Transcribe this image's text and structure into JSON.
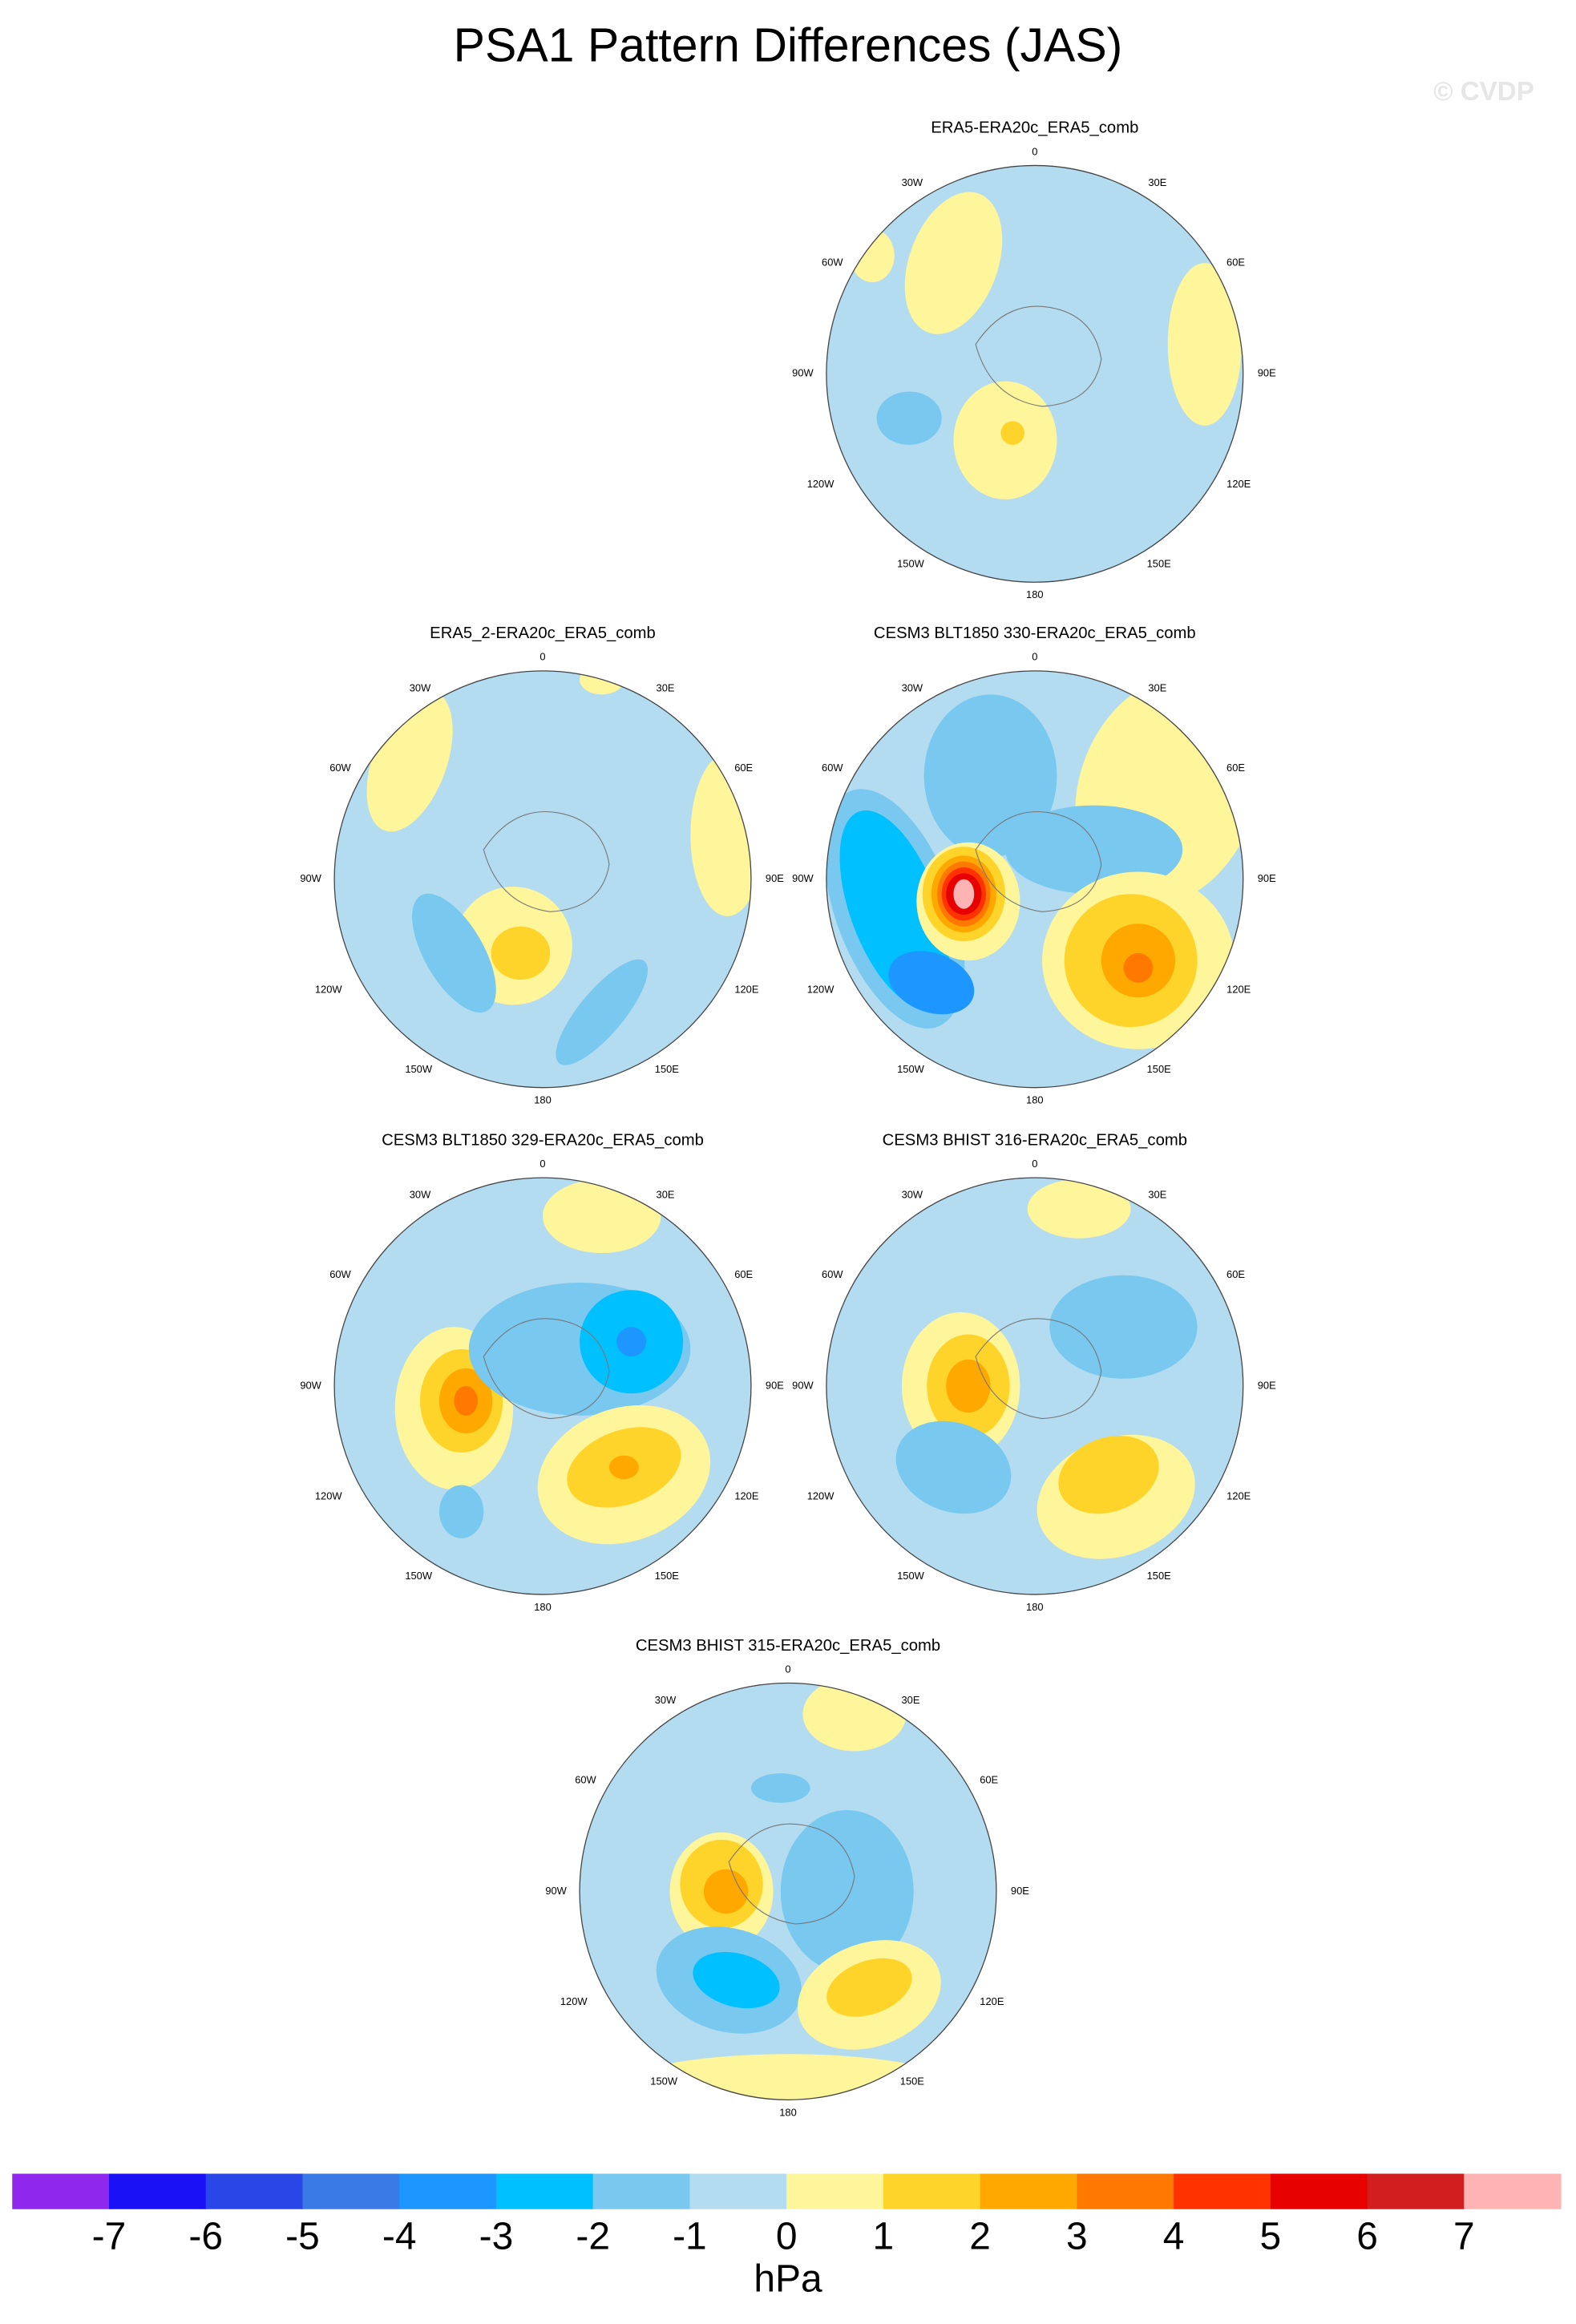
{
  "title": "PSA1 Pattern Differences (JAS)",
  "watermark": "© CVDP",
  "panels": [
    {
      "title": "ERA5-ERA20c_ERA5_comb",
      "lon_labels": [
        "0",
        "30E",
        "60E",
        "90E",
        "120E",
        "150E",
        "180",
        "150W",
        "120W",
        "90W",
        "60W",
        "30W"
      ]
    },
    {
      "title": "ERA5_2-ERA20c_ERA5_comb",
      "lon_labels": [
        "0",
        "30E",
        "60E",
        "90E",
        "120E",
        "150E",
        "180",
        "150W",
        "120W",
        "90W",
        "60W",
        "30W"
      ]
    },
    {
      "title": "CESM3 BLT1850 330-ERA20c_ERA5_comb",
      "lon_labels": [
        "0",
        "30E",
        "60E",
        "90E",
        "120E",
        "150E",
        "180",
        "150W",
        "120W",
        "90W",
        "60W",
        "30W"
      ]
    },
    {
      "title": "CESM3 BLT1850 329-ERA20c_ERA5_comb",
      "lon_labels": [
        "0",
        "30E",
        "60E",
        "90E",
        "120E",
        "150E",
        "180",
        "150W",
        "120W",
        "90W",
        "60W",
        "30W"
      ]
    },
    {
      "title": "CESM3 BHIST 316-ERA20c_ERA5_comb",
      "lon_labels": [
        "0",
        "30E",
        "60E",
        "90E",
        "120E",
        "150E",
        "180",
        "150W",
        "120W",
        "90W",
        "60W",
        "30W"
      ]
    },
    {
      "title": "CESM3 BHIST 315-ERA20c_ERA5_comb",
      "lon_labels": [
        "0",
        "30E",
        "60E",
        "90E",
        "120E",
        "150E",
        "180",
        "150W",
        "120W",
        "90W",
        "60W",
        "30W"
      ]
    }
  ],
  "colorbar": {
    "colors": [
      "#8f28ec",
      "#1a12f5",
      "#2847e6",
      "#3a7ae6",
      "#1e96ff",
      "#00c0ff",
      "#78c8f0",
      "#b4dcf0",
      "#fff59a",
      "#ffd42a",
      "#ffa800",
      "#ff7800",
      "#ff3200",
      "#e60000",
      "#d21e1e",
      "#ffb4b4"
    ],
    "ticks": [
      -7,
      -6,
      -5,
      -4,
      -3,
      -2,
      -1,
      0,
      1,
      2,
      3,
      4,
      5,
      6,
      7
    ],
    "units": "hPa"
  }
}
